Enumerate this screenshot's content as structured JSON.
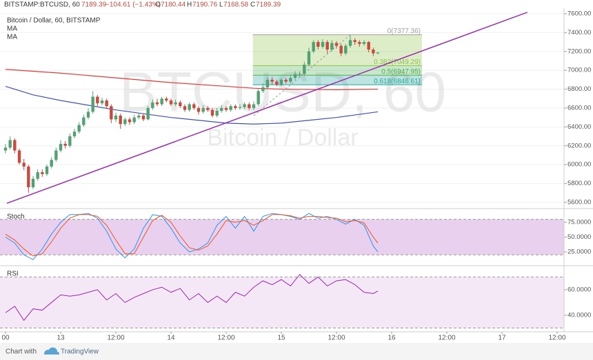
{
  "header": {
    "symbol": "BITSTAMP:BTCUSD, 60",
    "change": "−104.61 (−1.43%)",
    "open_label": "O",
    "high_label": "H",
    "low_label": "L",
    "close_label": "C"
  },
  "footer": {
    "prefix": "Chart with",
    "brand": "TradingView"
  },
  "chart_data": [
    {
      "type": "candlestick",
      "title": "Bitcoin / Dollar, 60, BITSTAMP",
      "watermark": "BTCUSD, 60",
      "watermark_subtitle": "Bitcoin / Dollar",
      "up_color": "#53a173",
      "down_color": "#c8493e",
      "x": [
        0,
        1,
        2,
        3,
        4,
        5,
        6,
        7,
        8,
        9,
        10,
        11,
        12,
        13,
        14,
        15,
        16,
        17,
        18,
        19,
        20,
        21,
        22,
        23,
        24,
        25,
        26,
        27,
        28,
        29,
        30,
        31,
        32,
        33,
        34,
        35,
        36,
        37,
        38,
        39,
        40,
        41,
        42,
        43,
        44,
        45,
        46,
        47,
        48,
        49,
        50,
        51,
        52,
        53,
        54,
        55,
        56,
        57,
        58,
        59,
        60,
        61,
        62,
        63,
        64,
        65,
        66,
        67,
        68,
        69,
        70,
        71,
        72,
        73,
        74,
        75,
        76,
        77,
        78,
        79,
        80,
        81
      ],
      "open": [
        6150,
        6180,
        6260,
        6150,
        6020,
        5980,
        5760,
        5850,
        5920,
        5900,
        5980,
        6050,
        6150,
        6220,
        6200,
        6300,
        6350,
        6420,
        6500,
        6560,
        6720,
        6650,
        6680,
        6620,
        6480,
        6520,
        6430,
        6480,
        6450,
        6500,
        6520,
        6480,
        6600,
        6660,
        6640,
        6700,
        6680,
        6640,
        6660,
        6620,
        6580,
        6640,
        6600,
        6560,
        6600,
        6580,
        6520,
        6570,
        6600,
        6580,
        6620,
        6600,
        6610,
        6640,
        6600,
        6640,
        6780,
        6820,
        6900,
        6880,
        6850,
        6900,
        6880,
        6920,
        6960,
        6960,
        7060,
        7200,
        7300,
        7250,
        7300,
        7220,
        7290,
        7260,
        7180,
        7260,
        7320,
        7300,
        7280,
        7300,
        7220,
        7180.44
      ],
      "high": [
        6220,
        6300,
        6280,
        6170,
        6060,
        6000,
        5880,
        5950,
        5950,
        6000,
        6080,
        6180,
        6260,
        6250,
        6330,
        6380,
        6450,
        6530,
        6600,
        6780,
        6740,
        6710,
        6700,
        6640,
        6550,
        6540,
        6500,
        6500,
        6530,
        6550,
        6540,
        6620,
        6690,
        6700,
        6720,
        6720,
        6700,
        6690,
        6680,
        6640,
        6660,
        6660,
        6620,
        6630,
        6620,
        6600,
        6600,
        6630,
        6620,
        6640,
        6640,
        6640,
        6660,
        6660,
        6670,
        6800,
        6860,
        6930,
        6930,
        6900,
        6920,
        6920,
        6950,
        6990,
        6990,
        7090,
        7240,
        7320,
        7320,
        7330,
        7320,
        7320,
        7310,
        7280,
        7280,
        7370,
        7340,
        7320,
        7320,
        7310,
        7240,
        7190.76
      ],
      "low": [
        6120,
        6160,
        6120,
        6000,
        5940,
        5700,
        5740,
        5830,
        5870,
        5880,
        5960,
        6030,
        6130,
        6170,
        6180,
        6280,
        6330,
        6400,
        6480,
        6540,
        6620,
        6630,
        6600,
        6440,
        6450,
        6380,
        6410,
        6420,
        6430,
        6480,
        6460,
        6470,
        6580,
        6620,
        6620,
        6660,
        6620,
        6620,
        6600,
        6560,
        6560,
        6580,
        6530,
        6540,
        6560,
        6500,
        6500,
        6550,
        6560,
        6560,
        6580,
        6580,
        6590,
        6580,
        6580,
        6620,
        6760,
        6800,
        6850,
        6830,
        6830,
        6860,
        6860,
        6900,
        6930,
        6940,
        7040,
        7180,
        7220,
        7230,
        7180,
        7200,
        7230,
        7150,
        7160,
        7240,
        7270,
        7250,
        7260,
        7190,
        7150,
        7168.58
      ],
      "close": [
        6180,
        6260,
        6150,
        6020,
        5980,
        5760,
        5850,
        5920,
        5900,
        5980,
        6050,
        6150,
        6220,
        6200,
        6300,
        6350,
        6420,
        6500,
        6560,
        6720,
        6650,
        6680,
        6620,
        6480,
        6520,
        6430,
        6480,
        6450,
        6500,
        6520,
        6480,
        6600,
        6660,
        6640,
        6700,
        6680,
        6640,
        6660,
        6620,
        6580,
        6640,
        6600,
        6560,
        6600,
        6580,
        6520,
        6570,
        6600,
        6580,
        6620,
        6600,
        6610,
        6640,
        6600,
        6640,
        6780,
        6820,
        6900,
        6880,
        6850,
        6900,
        6880,
        6920,
        6960,
        6960,
        7060,
        7200,
        7300,
        7250,
        7300,
        7220,
        7290,
        7260,
        7180,
        7260,
        7320,
        7300,
        7280,
        7300,
        7220,
        7180.44,
        7189.39
      ],
      "series": [
        {
          "name": "MA",
          "color": "#e53935",
          "x": [
            0,
            12,
            24,
            36,
            48,
            54,
            60,
            72,
            81
          ],
          "values": [
            7010,
            6970,
            6920,
            6870,
            6830,
            6810,
            6800,
            6795,
            6800
          ]
        },
        {
          "name": "MA",
          "color": "#3f51b5",
          "x": [
            0,
            6,
            12,
            18,
            24,
            30,
            36,
            42,
            48,
            54,
            60,
            66,
            72,
            78,
            81
          ],
          "values": [
            6830,
            6740,
            6680,
            6630,
            6580,
            6540,
            6500,
            6470,
            6440,
            6430,
            6440,
            6470,
            6500,
            6540,
            6560
          ]
        }
      ],
      "trendline": {
        "color": "#9c27b0",
        "x": [
          0.3,
          113.5
        ],
        "values": [
          5590,
          7615
        ]
      },
      "fib": {
        "x": [
          53.8,
          90.6
        ],
        "anchor": {
          "x": [
            54,
            75
          ],
          "values": [
            6518.56,
            7377.36
          ]
        },
        "levels": [
          {
            "label": "0(7377.36)",
            "value": 7377.36,
            "color": "#9e9e9e"
          },
          {
            "label": "0.382(7049.29)",
            "value": 7049.29,
            "color": "#8bc34a"
          },
          {
            "label": "0.5(6947.95)",
            "value": 6947.95,
            "color": "#4caf50"
          },
          {
            "label": "0.618(6846.61)",
            "value": 6846.61,
            "color": "#26a69a"
          }
        ]
      },
      "xlim": [
        -1.2,
        121.5
      ],
      "ylim": [
        5556,
        7658
      ],
      "grid": true,
      "yticks": [
        {
          "value": 5600,
          "label": "5600.00"
        },
        {
          "value": 5800,
          "label": "5800.00"
        },
        {
          "value": 6000,
          "label": "6000.00"
        },
        {
          "value": 6200,
          "label": "6200.00"
        },
        {
          "value": 6400,
          "label": "6400.00"
        },
        {
          "value": 6600,
          "label": "6600.00"
        },
        {
          "value": 6800,
          "label": "6800.00"
        },
        {
          "value": 7000,
          "label": "7000.00"
        },
        {
          "value": 7200,
          "label": "7200.00"
        },
        {
          "value": 7400,
          "label": "7400.00"
        },
        {
          "value": 7600,
          "label": "7600.00"
        }
      ]
    },
    {
      "type": "line",
      "title": "Stoch",
      "band": [
        20,
        80
      ],
      "band_color": "#9c27b0",
      "series": [
        {
          "color": "#2196f3",
          "x": [
            0,
            2,
            4,
            6,
            8,
            10,
            12,
            14,
            16,
            18,
            20,
            22,
            24,
            26,
            28,
            30,
            32,
            34,
            36,
            38,
            40,
            42,
            44,
            46,
            48,
            50,
            52,
            54,
            56,
            58,
            60,
            62,
            64,
            66,
            68,
            70,
            72,
            74,
            76,
            78,
            80,
            81
          ],
          "values": [
            50,
            40,
            20,
            12,
            30,
            55,
            75,
            88,
            88,
            90,
            82,
            60,
            30,
            15,
            30,
            65,
            88,
            85,
            65,
            40,
            25,
            30,
            40,
            70,
            85,
            65,
            85,
            60,
            85,
            90,
            88,
            85,
            80,
            90,
            82,
            85,
            80,
            72,
            80,
            70,
            35,
            25
          ]
        },
        {
          "color": "#f4511e",
          "x": [
            0,
            2,
            4,
            6,
            8,
            10,
            12,
            14,
            16,
            18,
            20,
            22,
            24,
            26,
            28,
            30,
            32,
            34,
            36,
            38,
            40,
            42,
            44,
            46,
            48,
            50,
            52,
            54,
            56,
            58,
            60,
            62,
            64,
            66,
            68,
            70,
            72,
            74,
            76,
            78,
            80,
            81
          ],
          "values": [
            55,
            45,
            30,
            18,
            22,
            42,
            65,
            82,
            88,
            88,
            85,
            70,
            45,
            22,
            22,
            50,
            78,
            87,
            75,
            52,
            32,
            28,
            35,
            55,
            78,
            75,
            78,
            70,
            78,
            88,
            88,
            86,
            82,
            85,
            85,
            83,
            82,
            76,
            78,
            74,
            50,
            40
          ]
        }
      ],
      "xlim": [
        -1.2,
        121.5
      ],
      "ylim": [
        2.9,
        95.9
      ],
      "yticks": [
        {
          "value": 25,
          "label": "25.0000"
        },
        {
          "value": 50,
          "label": "50.0000"
        },
        {
          "value": 75,
          "label": "75.0000"
        }
      ]
    },
    {
      "type": "line",
      "title": "RSI",
      "band": [
        30,
        70
      ],
      "band_color": "#ce93d8",
      "series": [
        {
          "color": "#9c27b0",
          "x": [
            0,
            2,
            4,
            6,
            8,
            10,
            12,
            14,
            16,
            18,
            20,
            22,
            24,
            26,
            28,
            30,
            32,
            34,
            36,
            38,
            40,
            42,
            44,
            46,
            48,
            50,
            52,
            54,
            56,
            58,
            60,
            62,
            64,
            66,
            68,
            70,
            72,
            74,
            76,
            78,
            80,
            81
          ],
          "values": [
            42,
            47,
            36,
            45,
            44,
            50,
            56,
            55,
            56,
            58,
            60,
            52,
            57,
            50,
            54,
            57,
            60,
            62,
            58,
            61,
            52,
            57,
            50,
            55,
            50,
            58,
            55,
            62,
            67,
            64,
            68,
            63,
            72,
            65,
            70,
            63,
            67,
            68,
            64,
            58,
            57,
            59
          ]
        }
      ],
      "xlim": [
        -1.2,
        121.5
      ],
      "ylim": [
        27,
        77.8
      ],
      "yticks": [
        {
          "value": 40,
          "label": "40.0000"
        },
        {
          "value": 60,
          "label": "60.0000"
        }
      ],
      "xticks": [
        {
          "value": 0,
          "label": "00"
        },
        {
          "value": 12,
          "label": "13"
        },
        {
          "value": 24,
          "label": "12:00"
        },
        {
          "value": 36,
          "label": "14"
        },
        {
          "value": 48,
          "label": "12:00"
        },
        {
          "value": 60,
          "label": "15"
        },
        {
          "value": 72,
          "label": "12:00"
        },
        {
          "value": 84,
          "label": "16"
        },
        {
          "value": 96,
          "label": "12:00"
        },
        {
          "value": 108,
          "label": "17"
        },
        {
          "value": 120,
          "label": "12:00"
        }
      ]
    }
  ]
}
